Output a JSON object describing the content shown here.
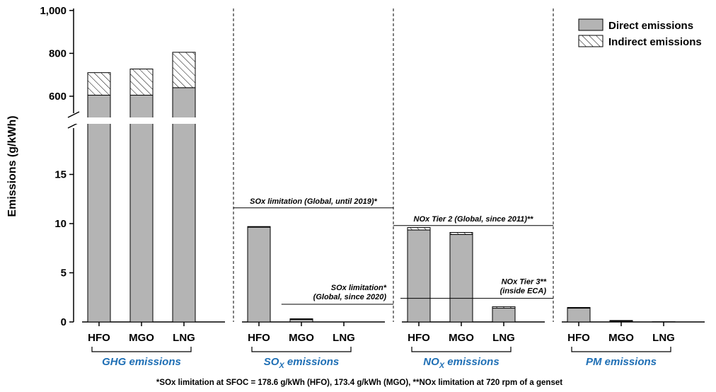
{
  "chart_data": {
    "type": "bar",
    "stacked": true,
    "ylabel": "Emissions (g/kWh)",
    "axis_break": true,
    "y_ticks_lower": [
      "0",
      "5",
      "10",
      "15"
    ],
    "y_ticks_upper": [
      "600",
      "800",
      "1,000"
    ],
    "colors": {
      "direct": "#b4b4b4",
      "edge": "#000000",
      "group_label": "#1f6fb5"
    },
    "legend": {
      "placement": "top-right",
      "items": [
        {
          "name": "Direct emissions",
          "pattern": "solid"
        },
        {
          "name": "Indirect emissions",
          "pattern": "hatched"
        }
      ]
    },
    "groups": [
      {
        "name": "GHG emissions",
        "name_main": "GHG emissions",
        "name_sub": "",
        "name_tail": "",
        "categories": [
          "HFO",
          "MGO",
          "LNG"
        ],
        "direct": [
          605,
          605,
          640
        ],
        "indirect": [
          105,
          122,
          165
        ],
        "limits": []
      },
      {
        "name": "SOx emissions",
        "name_main": "SO",
        "name_sub": "X",
        "name_tail": " emissions",
        "categories": [
          "HFO",
          "MGO",
          "LNG"
        ],
        "direct": [
          9.65,
          0.28,
          0
        ],
        "indirect": [
          0.05,
          0.04,
          0
        ],
        "limits": [
          {
            "label": "SOx limitation (Global, until 2019)*",
            "value": 11.6
          },
          {
            "label_lines": [
              "SOx limitation*",
              "(Global, since 2020)"
            ],
            "value": 1.8
          }
        ]
      },
      {
        "name": "NOx emissions",
        "name_main": "NO",
        "name_sub": "X",
        "name_tail": " emissions",
        "categories": [
          "HFO",
          "MGO",
          "LNG"
        ],
        "direct": [
          9.35,
          8.9,
          1.4
        ],
        "indirect": [
          0.25,
          0.2,
          0.15
        ],
        "limits": [
          {
            "label": "NOx Tier 2 (Global, since 2011)**",
            "value": 9.8
          },
          {
            "label_lines": [
              "NOx Tier 3**",
              "(inside ECA)"
            ],
            "value": 2.4
          }
        ]
      },
      {
        "name": "PM emissions",
        "name_main": "PM emissions",
        "name_sub": "",
        "name_tail": "",
        "categories": [
          "HFO",
          "MGO",
          "LNG"
        ],
        "direct": [
          1.45,
          0.12,
          0.02
        ],
        "indirect": [
          0.02,
          0.03,
          0
        ],
        "limits": []
      }
    ]
  },
  "footnote": "*SOx limitation at SFOC = 178.6 g/kWh (HFO), 173.4 g/kWh (MGO), **NOx limitation at 720 rpm of a genset"
}
